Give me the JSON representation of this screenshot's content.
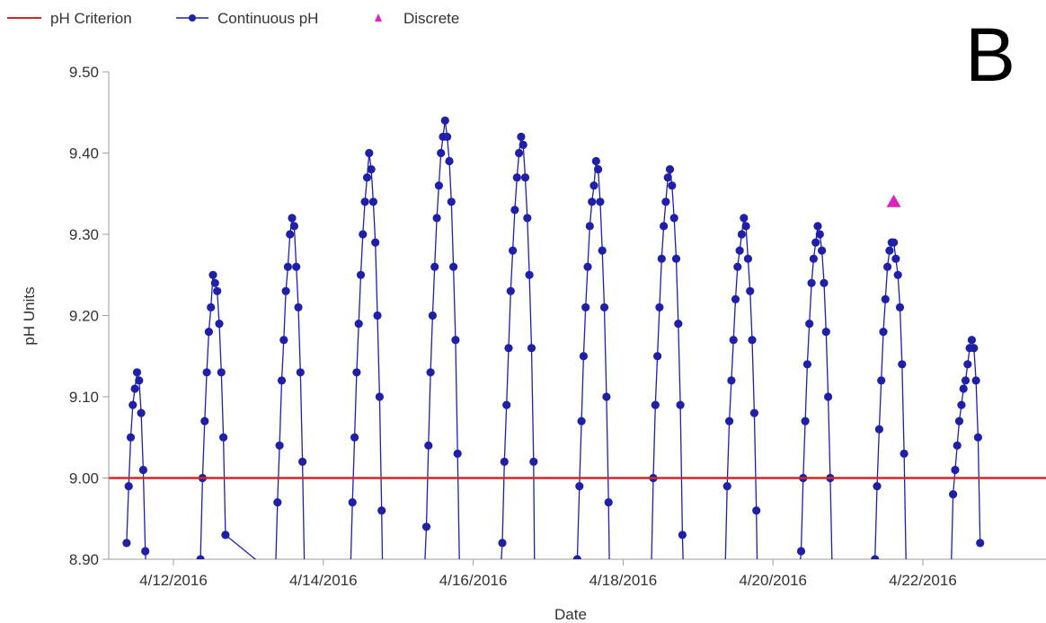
{
  "panel_label": "B",
  "colors": {
    "criterion": "#d62728",
    "continuous": "#1f1fa8",
    "discrete": "#e020c0",
    "axis": "#9e9e9e",
    "text": "#333333"
  },
  "chart_data": {
    "type": "line",
    "xlabel": "Date",
    "ylabel": "pH Units",
    "ylim": [
      8.9,
      9.5
    ],
    "yticks": [
      8.9,
      9.0,
      9.1,
      9.2,
      9.3,
      9.4,
      9.5
    ],
    "ytick_labels": [
      "8.90",
      "9.00",
      "9.10",
      "9.20",
      "9.30",
      "9.40",
      "9.50"
    ],
    "xlim": [
      "2016-04-11",
      "2016-04-23"
    ],
    "xticks": [
      "2016-04-12",
      "2016-04-14",
      "2016-04-16",
      "2016-04-18",
      "2016-04-20",
      "2016-04-22"
    ],
    "xtick_labels": [
      "4/12/2016",
      "4/14/2016",
      "4/16/2016",
      "4/18/2016",
      "4/20/2016",
      "4/22/2016"
    ],
    "legend": {
      "position": "top-left",
      "entries": [
        "pH Criterion",
        "Continuous pH",
        "Discrete"
      ]
    },
    "criterion": {
      "name": "pH Criterion",
      "value": 9.0
    },
    "series": [
      {
        "name": "Continuous pH",
        "marker": "circle",
        "points": [
          [
            "2016-04-11 09:00",
            8.92
          ],
          [
            "2016-04-11 09:40",
            8.99
          ],
          [
            "2016-04-11 10:20",
            9.05
          ],
          [
            "2016-04-11 11:00",
            9.09
          ],
          [
            "2016-04-11 11:40",
            9.11
          ],
          [
            "2016-04-11 12:20",
            9.13
          ],
          [
            "2016-04-11 13:00",
            9.12
          ],
          [
            "2016-04-11 13:40",
            9.08
          ],
          [
            "2016-04-11 14:20",
            9.01
          ],
          [
            "2016-04-11 15:00",
            8.91
          ],
          [
            "2016-04-11 15:20",
            8.88
          ],
          [
            "2016-04-12 08:00",
            8.88
          ],
          [
            "2016-04-12 08:40",
            8.9
          ],
          [
            "2016-04-12 09:20",
            9.0
          ],
          [
            "2016-04-12 10:00",
            9.07
          ],
          [
            "2016-04-12 10:40",
            9.13
          ],
          [
            "2016-04-12 11:20",
            9.18
          ],
          [
            "2016-04-12 12:00",
            9.21
          ],
          [
            "2016-04-12 12:40",
            9.25
          ],
          [
            "2016-04-12 13:20",
            9.24
          ],
          [
            "2016-04-12 14:00",
            9.23
          ],
          [
            "2016-04-12 14:40",
            9.19
          ],
          [
            "2016-04-12 15:20",
            9.13
          ],
          [
            "2016-04-12 16:00",
            9.05
          ],
          [
            "2016-04-12 16:40",
            8.93
          ],
          [
            "2016-04-13 08:40",
            8.88
          ],
          [
            "2016-04-13 09:20",
            8.97
          ],
          [
            "2016-04-13 10:00",
            9.04
          ],
          [
            "2016-04-13 10:40",
            9.12
          ],
          [
            "2016-04-13 11:20",
            9.17
          ],
          [
            "2016-04-13 12:00",
            9.23
          ],
          [
            "2016-04-13 12:40",
            9.26
          ],
          [
            "2016-04-13 13:20",
            9.3
          ],
          [
            "2016-04-13 14:00",
            9.32
          ],
          [
            "2016-04-13 14:40",
            9.31
          ],
          [
            "2016-04-13 15:20",
            9.26
          ],
          [
            "2016-04-13 16:00",
            9.21
          ],
          [
            "2016-04-13 16:40",
            9.13
          ],
          [
            "2016-04-13 17:20",
            9.02
          ],
          [
            "2016-04-13 18:00",
            8.88
          ],
          [
            "2016-04-14 08:40",
            8.88
          ],
          [
            "2016-04-14 09:20",
            8.97
          ],
          [
            "2016-04-14 10:00",
            9.05
          ],
          [
            "2016-04-14 10:40",
            9.13
          ],
          [
            "2016-04-14 11:20",
            9.19
          ],
          [
            "2016-04-14 12:00",
            9.25
          ],
          [
            "2016-04-14 12:40",
            9.3
          ],
          [
            "2016-04-14 13:20",
            9.34
          ],
          [
            "2016-04-14 14:00",
            9.37
          ],
          [
            "2016-04-14 14:40",
            9.4
          ],
          [
            "2016-04-14 15:20",
            9.38
          ],
          [
            "2016-04-14 16:00",
            9.34
          ],
          [
            "2016-04-14 16:40",
            9.29
          ],
          [
            "2016-04-14 17:20",
            9.2
          ],
          [
            "2016-04-14 18:00",
            9.1
          ],
          [
            "2016-04-14 18:40",
            8.96
          ],
          [
            "2016-04-14 19:00",
            8.88
          ],
          [
            "2016-04-15 08:20",
            8.88
          ],
          [
            "2016-04-15 09:00",
            8.94
          ],
          [
            "2016-04-15 09:40",
            9.04
          ],
          [
            "2016-04-15 10:20",
            9.13
          ],
          [
            "2016-04-15 11:00",
            9.2
          ],
          [
            "2016-04-15 11:40",
            9.26
          ],
          [
            "2016-04-15 12:20",
            9.32
          ],
          [
            "2016-04-15 13:00",
            9.36
          ],
          [
            "2016-04-15 13:40",
            9.4
          ],
          [
            "2016-04-15 14:20",
            9.42
          ],
          [
            "2016-04-15 15:00",
            9.44
          ],
          [
            "2016-04-15 15:40",
            9.42
          ],
          [
            "2016-04-15 16:20",
            9.39
          ],
          [
            "2016-04-15 17:00",
            9.34
          ],
          [
            "2016-04-15 17:40",
            9.26
          ],
          [
            "2016-04-15 18:20",
            9.17
          ],
          [
            "2016-04-15 19:00",
            9.03
          ],
          [
            "2016-04-15 19:40",
            8.88
          ],
          [
            "2016-04-16 08:40",
            8.88
          ],
          [
            "2016-04-16 09:20",
            8.92
          ],
          [
            "2016-04-16 10:00",
            9.02
          ],
          [
            "2016-04-16 10:40",
            9.09
          ],
          [
            "2016-04-16 11:20",
            9.16
          ],
          [
            "2016-04-16 12:00",
            9.23
          ],
          [
            "2016-04-16 12:40",
            9.28
          ],
          [
            "2016-04-16 13:20",
            9.33
          ],
          [
            "2016-04-16 14:00",
            9.37
          ],
          [
            "2016-04-16 14:40",
            9.4
          ],
          [
            "2016-04-16 15:20",
            9.42
          ],
          [
            "2016-04-16 16:00",
            9.41
          ],
          [
            "2016-04-16 16:40",
            9.37
          ],
          [
            "2016-04-16 17:20",
            9.32
          ],
          [
            "2016-04-16 18:00",
            9.25
          ],
          [
            "2016-04-16 18:40",
            9.16
          ],
          [
            "2016-04-16 19:20",
            9.02
          ],
          [
            "2016-04-16 19:40",
            8.88
          ],
          [
            "2016-04-17 08:40",
            8.88
          ],
          [
            "2016-04-17 09:20",
            8.9
          ],
          [
            "2016-04-17 10:00",
            8.99
          ],
          [
            "2016-04-17 10:40",
            9.07
          ],
          [
            "2016-04-17 11:20",
            9.15
          ],
          [
            "2016-04-17 12:00",
            9.21
          ],
          [
            "2016-04-17 12:40",
            9.26
          ],
          [
            "2016-04-17 13:20",
            9.31
          ],
          [
            "2016-04-17 14:00",
            9.34
          ],
          [
            "2016-04-17 14:40",
            9.36
          ],
          [
            "2016-04-17 15:20",
            9.39
          ],
          [
            "2016-04-17 16:00",
            9.38
          ],
          [
            "2016-04-17 16:40",
            9.34
          ],
          [
            "2016-04-17 17:20",
            9.28
          ],
          [
            "2016-04-17 18:00",
            9.21
          ],
          [
            "2016-04-17 18:40",
            9.1
          ],
          [
            "2016-04-17 19:20",
            8.97
          ],
          [
            "2016-04-17 19:40",
            8.88
          ],
          [
            "2016-04-18 09:00",
            8.88
          ],
          [
            "2016-04-18 09:40",
            9.0
          ],
          [
            "2016-04-18 10:20",
            9.09
          ],
          [
            "2016-04-18 11:00",
            9.15
          ],
          [
            "2016-04-18 11:40",
            9.21
          ],
          [
            "2016-04-18 12:20",
            9.27
          ],
          [
            "2016-04-18 13:00",
            9.31
          ],
          [
            "2016-04-18 13:40",
            9.34
          ],
          [
            "2016-04-18 14:20",
            9.37
          ],
          [
            "2016-04-18 15:00",
            9.38
          ],
          [
            "2016-04-18 15:40",
            9.36
          ],
          [
            "2016-04-18 16:20",
            9.32
          ],
          [
            "2016-04-18 17:00",
            9.27
          ],
          [
            "2016-04-18 17:40",
            9.19
          ],
          [
            "2016-04-18 18:20",
            9.09
          ],
          [
            "2016-04-18 19:00",
            8.93
          ],
          [
            "2016-04-18 19:20",
            8.88
          ],
          [
            "2016-04-19 08:40",
            8.88
          ],
          [
            "2016-04-19 09:20",
            8.99
          ],
          [
            "2016-04-19 10:00",
            9.07
          ],
          [
            "2016-04-19 10:40",
            9.12
          ],
          [
            "2016-04-19 11:20",
            9.17
          ],
          [
            "2016-04-19 12:00",
            9.22
          ],
          [
            "2016-04-19 12:40",
            9.26
          ],
          [
            "2016-04-19 13:20",
            9.28
          ],
          [
            "2016-04-19 14:00",
            9.3
          ],
          [
            "2016-04-19 14:40",
            9.32
          ],
          [
            "2016-04-19 15:20",
            9.31
          ],
          [
            "2016-04-19 16:00",
            9.27
          ],
          [
            "2016-04-19 16:40",
            9.23
          ],
          [
            "2016-04-19 17:20",
            9.17
          ],
          [
            "2016-04-19 18:00",
            9.08
          ],
          [
            "2016-04-19 18:40",
            8.96
          ],
          [
            "2016-04-19 19:00",
            8.88
          ],
          [
            "2016-04-20 08:20",
            8.88
          ],
          [
            "2016-04-20 09:00",
            8.91
          ],
          [
            "2016-04-20 09:40",
            9.0
          ],
          [
            "2016-04-20 10:20",
            9.07
          ],
          [
            "2016-04-20 11:00",
            9.14
          ],
          [
            "2016-04-20 11:40",
            9.19
          ],
          [
            "2016-04-20 12:20",
            9.24
          ],
          [
            "2016-04-20 13:00",
            9.27
          ],
          [
            "2016-04-20 13:40",
            9.29
          ],
          [
            "2016-04-20 14:20",
            9.31
          ],
          [
            "2016-04-20 15:00",
            9.3
          ],
          [
            "2016-04-20 15:40",
            9.28
          ],
          [
            "2016-04-20 16:20",
            9.24
          ],
          [
            "2016-04-20 17:00",
            9.18
          ],
          [
            "2016-04-20 17:40",
            9.1
          ],
          [
            "2016-04-20 18:20",
            9.0
          ],
          [
            "2016-04-20 19:00",
            8.88
          ],
          [
            "2016-04-21 08:00",
            8.88
          ],
          [
            "2016-04-21 08:40",
            8.9
          ],
          [
            "2016-04-21 09:20",
            8.99
          ],
          [
            "2016-04-21 10:00",
            9.06
          ],
          [
            "2016-04-21 10:40",
            9.12
          ],
          [
            "2016-04-21 11:20",
            9.18
          ],
          [
            "2016-04-21 12:00",
            9.22
          ],
          [
            "2016-04-21 12:40",
            9.26
          ],
          [
            "2016-04-21 13:20",
            9.28
          ],
          [
            "2016-04-21 14:00",
            9.29
          ],
          [
            "2016-04-21 14:40",
            9.29
          ],
          [
            "2016-04-21 15:20",
            9.27
          ],
          [
            "2016-04-21 16:00",
            9.25
          ],
          [
            "2016-04-21 16:40",
            9.21
          ],
          [
            "2016-04-21 17:20",
            9.14
          ],
          [
            "2016-04-21 18:00",
            9.03
          ],
          [
            "2016-04-21 18:40",
            8.88
          ],
          [
            "2016-04-22 09:00",
            8.88
          ],
          [
            "2016-04-22 09:40",
            8.98
          ],
          [
            "2016-04-22 10:20",
            9.01
          ],
          [
            "2016-04-22 11:00",
            9.04
          ],
          [
            "2016-04-22 11:40",
            9.07
          ],
          [
            "2016-04-22 12:20",
            9.09
          ],
          [
            "2016-04-22 13:00",
            9.11
          ],
          [
            "2016-04-22 13:40",
            9.12
          ],
          [
            "2016-04-22 14:20",
            9.14
          ],
          [
            "2016-04-22 15:00",
            9.16
          ],
          [
            "2016-04-22 15:40",
            9.17
          ],
          [
            "2016-04-22 16:20",
            9.16
          ],
          [
            "2016-04-22 17:00",
            9.12
          ],
          [
            "2016-04-22 17:40",
            9.05
          ],
          [
            "2016-04-22 18:20",
            8.92
          ]
        ]
      },
      {
        "name": "Discrete",
        "marker": "triangle",
        "points": [
          [
            "2016-04-21 14:40",
            9.34
          ]
        ]
      }
    ]
  }
}
